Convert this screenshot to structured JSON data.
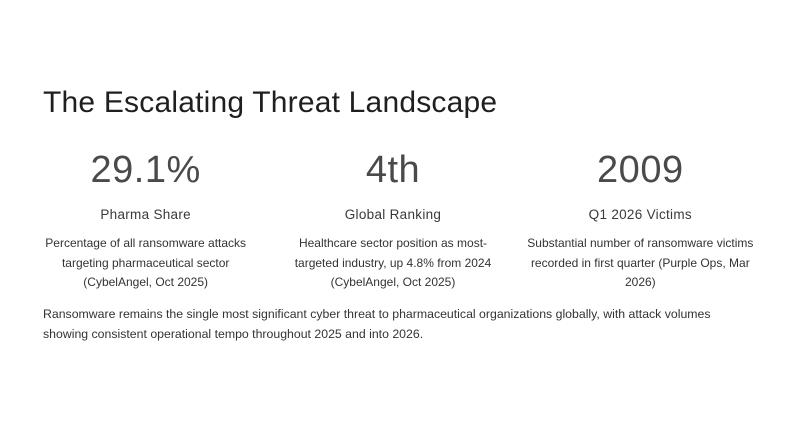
{
  "slide": {
    "title": "The Escalating Threat Landscape",
    "stats": [
      {
        "value": "29.1%",
        "label": "Pharma Share",
        "description": "Percentage of all ransomware attacks targeting pharmaceutical sector (CybelAngel, Oct 2025)"
      },
      {
        "value": "4th",
        "label": "Global Ranking",
        "description": "Healthcare sector position as most-targeted industry, up 4.8% from 2024 (CybelAngel, Oct 2025)"
      },
      {
        "value": "2009",
        "label": "Q1 2026 Victims",
        "description": "Substantial number of ransomware victims recorded in first quarter (Purple Ops, Mar 2026)"
      }
    ],
    "summary": "Ransomware remains the single most significant cyber threat to pharmaceutical organizations globally, with attack volumes showing consistent operational tempo throughout 2025 and into 2026."
  }
}
